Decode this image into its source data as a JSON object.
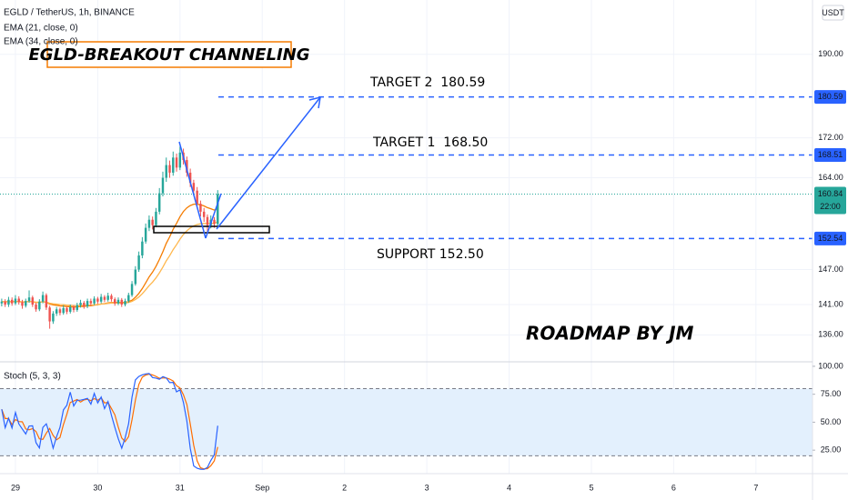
{
  "chart_data": {
    "type": "candlestick",
    "title": "EGLD / TetherUS, 1h, BINANCE",
    "currency": "USDT",
    "indicators": [
      {
        "label": "EMA (21, close, 0)",
        "period": 21,
        "color": "#f57c00"
      },
      {
        "label": "EMA (34, close, 0)",
        "period": 34,
        "color": "#ffb74d"
      }
    ],
    "annotations": {
      "headline": "EGLD-BREAKOUT CHANNELING",
      "target2": "TARGET 2  180.59",
      "target1": "TARGET 1  168.50",
      "support": "SUPPORT 152.50",
      "credit": "ROADMAP BY JM"
    },
    "levels": [
      180.59,
      168.51,
      152.54
    ],
    "level_color": "#2962ff",
    "last_color": "#26a69a",
    "countdown": "22:00",
    "up_color": "#26a69a",
    "down_color": "#ef5350",
    "open": [
      141.2,
      141.5,
      141.0,
      141.8,
      141.2,
      142.0,
      141.4,
      140.8,
      141.6,
      142.2,
      141.0,
      140.2,
      141.5,
      142.6,
      140.5,
      138.2,
      139.5,
      140.2,
      139.6,
      140.4,
      139.8,
      140.6,
      140.1,
      140.9,
      141.3,
      140.7,
      141.6,
      141.2,
      142.0,
      141.5,
      142.3,
      141.8,
      142.5,
      141.9,
      141.2,
      141.8,
      141.0,
      141.6,
      142.6,
      144.5,
      147.0,
      149.5,
      152.0,
      154.5,
      156.0,
      155.0,
      157.5,
      161.0,
      164.0,
      166.5,
      165.0,
      168.0,
      166.0,
      169.0,
      167.5,
      165.0,
      163.0,
      161.5,
      159.0,
      157.5,
      156.5,
      155.0,
      156.0,
      155.2
    ],
    "high": [
      142.0,
      141.9,
      142.3,
      142.2,
      142.6,
      142.4,
      141.8,
      142.0,
      143.4,
      142.5,
      141.3,
      141.9,
      143.2,
      142.9,
      140.8,
      139.9,
      140.6,
      140.5,
      140.9,
      140.7,
      141.0,
      140.9,
      141.3,
      141.8,
      141.6,
      142.0,
      142.0,
      142.4,
      142.3,
      142.8,
      142.6,
      143.0,
      142.8,
      142.2,
      142.2,
      142.1,
      142.0,
      143.0,
      145.0,
      147.6,
      150.2,
      152.8,
      155.3,
      156.8,
      156.6,
      158.2,
      162.0,
      165.2,
      168.0,
      167.4,
      169.2,
      168.8,
      170.2,
      169.8,
      168.2,
      165.8,
      163.6,
      162.2,
      159.6,
      158.2,
      157.0,
      156.8,
      156.5,
      161.6
    ],
    "low": [
      140.7,
      140.6,
      140.6,
      140.8,
      140.9,
      141.0,
      140.3,
      140.5,
      141.3,
      140.6,
      139.8,
      139.9,
      141.2,
      140.1,
      137.0,
      137.8,
      139.1,
      139.2,
      139.3,
      139.4,
      139.5,
      139.7,
      139.8,
      140.5,
      140.3,
      140.4,
      140.8,
      140.9,
      141.1,
      141.2,
      141.4,
      141.5,
      141.5,
      140.8,
      140.9,
      140.6,
      140.7,
      141.3,
      142.3,
      144.2,
      146.6,
      149.0,
      151.6,
      153.9,
      154.2,
      154.6,
      157.0,
      160.4,
      163.2,
      164.0,
      164.4,
      165.2,
      165.5,
      166.6,
      164.2,
      162.2,
      160.6,
      158.2,
      156.6,
      155.6,
      153.8,
      154.4,
      154.5,
      154.9
    ],
    "close": [
      141.5,
      141.0,
      141.8,
      141.2,
      142.0,
      141.4,
      140.8,
      141.6,
      142.2,
      141.0,
      140.2,
      141.5,
      142.6,
      140.5,
      138.2,
      139.5,
      140.2,
      139.6,
      140.4,
      139.8,
      140.6,
      140.1,
      140.9,
      141.3,
      140.7,
      141.6,
      141.2,
      142.0,
      141.5,
      142.3,
      141.8,
      142.5,
      141.9,
      141.2,
      141.8,
      141.0,
      141.6,
      142.6,
      144.5,
      147.0,
      149.5,
      152.0,
      154.5,
      156.0,
      155.0,
      157.5,
      161.0,
      164.0,
      166.5,
      165.0,
      168.0,
      166.0,
      169.0,
      167.5,
      165.0,
      163.0,
      161.5,
      159.0,
      157.5,
      156.5,
      155.0,
      156.0,
      155.2,
      160.84
    ],
    "ylim": [
      131.7,
      202.7
    ],
    "log_scale": true,
    "yticks": [
      {
        "value": 190,
        "label": "190.00"
      },
      {
        "value": 172,
        "label": "172.00"
      },
      {
        "value": 164,
        "label": "164.00"
      },
      {
        "value": 147,
        "label": "147.00"
      },
      {
        "value": 141,
        "label": "141.00"
      },
      {
        "value": 136,
        "label": "136.00"
      }
    ],
    "xlim": [
      -0.5,
      236.5
    ],
    "xticks": [
      {
        "value": 4,
        "label": "29"
      },
      {
        "value": 28,
        "label": "30"
      },
      {
        "value": 52,
        "label": "31"
      },
      {
        "value": 76,
        "label": "Sep"
      },
      {
        "value": 100,
        "label": "2"
      },
      {
        "value": 124,
        "label": "3"
      },
      {
        "value": 148,
        "label": "4"
      },
      {
        "value": 172,
        "label": "5"
      },
      {
        "value": 196,
        "label": "6"
      },
      {
        "value": 220,
        "label": "7"
      }
    ],
    "oscillator": {
      "label": "Stoch (5, 3, 3)",
      "periods": [
        5,
        3,
        3
      ],
      "k_color": "#2962ff",
      "d_color": "#ff6d00",
      "band": [
        20,
        80
      ],
      "ylim": [
        4,
        104
      ],
      "yticks": [
        {
          "value": 100,
          "label": "100.00"
        },
        {
          "value": 75,
          "label": "75.00"
        },
        {
          "value": 50,
          "label": "50.00"
        },
        {
          "value": 25,
          "label": "25.00"
        }
      ]
    }
  }
}
